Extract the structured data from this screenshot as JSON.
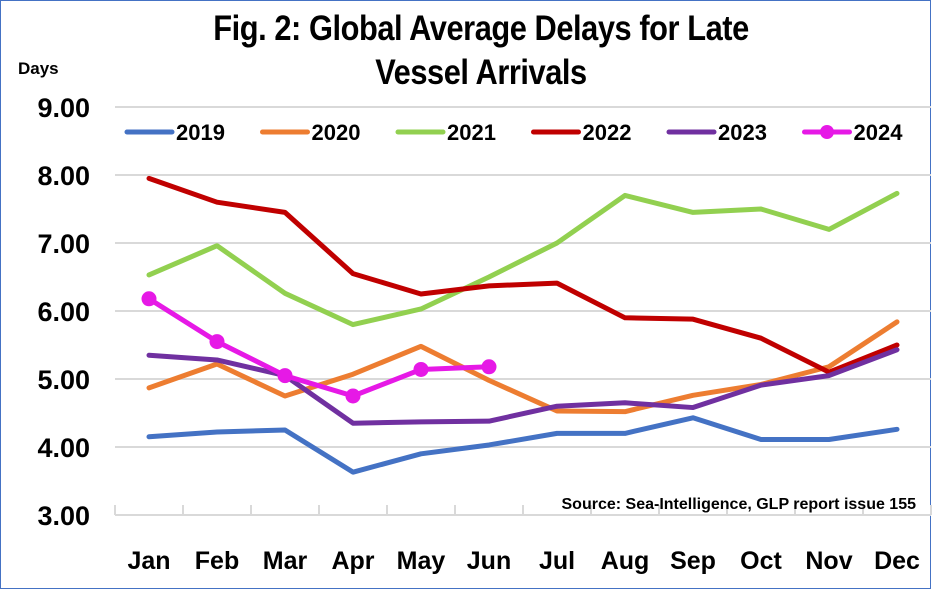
{
  "chart_data": {
    "type": "line",
    "title": "Fig. 2: Global Average Delays for Late Vessel Arrivals",
    "ylabel": "Days",
    "xlabel": "",
    "ylim": [
      3,
      9
    ],
    "yticks": [
      "3.00",
      "4.00",
      "5.00",
      "6.00",
      "7.00",
      "8.00",
      "9.00"
    ],
    "grid": true,
    "legend_position": "top",
    "categories": [
      "Jan",
      "Feb",
      "Mar",
      "Apr",
      "May",
      "Jun",
      "Jul",
      "Aug",
      "Sep",
      "Oct",
      "Nov",
      "Dec"
    ],
    "series": [
      {
        "name": "2019",
        "color": "#4472C4",
        "markers": false,
        "values": [
          4.15,
          4.22,
          4.25,
          3.63,
          3.9,
          4.03,
          4.2,
          4.2,
          4.43,
          4.11,
          4.11,
          4.26
        ]
      },
      {
        "name": "2020",
        "color": "#ED7D31",
        "markers": false,
        "values": [
          4.87,
          5.22,
          4.75,
          5.07,
          5.48,
          4.98,
          4.53,
          4.52,
          4.76,
          4.92,
          5.18,
          5.84
        ]
      },
      {
        "name": "2021",
        "color": "#92D050",
        "markers": false,
        "values": [
          6.53,
          6.96,
          6.26,
          5.8,
          6.03,
          6.5,
          7.0,
          7.7,
          7.45,
          7.5,
          7.2,
          7.73
        ]
      },
      {
        "name": "2022",
        "color": "#C00000",
        "markers": false,
        "values": [
          7.95,
          7.6,
          7.45,
          6.55,
          6.25,
          6.37,
          6.41,
          5.9,
          5.88,
          5.6,
          5.1,
          5.5
        ]
      },
      {
        "name": "2023",
        "color": "#7030A0",
        "markers": false,
        "values": [
          5.35,
          5.28,
          5.05,
          4.35,
          4.37,
          4.38,
          4.6,
          4.65,
          4.58,
          4.91,
          5.05,
          5.43
        ]
      },
      {
        "name": "2024",
        "color": "#E619E6",
        "markers": true,
        "values": [
          6.18,
          5.55,
          5.05,
          4.75,
          5.14,
          5.18
        ]
      }
    ],
    "annotation": "Source: Sea-Intelligence, GLP report issue 155"
  },
  "frame_color": "#4472C4",
  "grid_color": "#D9D9D9"
}
